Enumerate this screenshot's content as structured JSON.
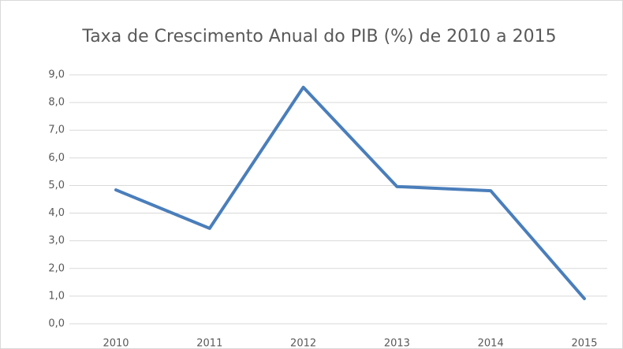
{
  "chart_data": {
    "type": "line",
    "title": "Taxa de Crescimento Anual do PIB (%) de 2010 a 2015",
    "categories": [
      "2010",
      "2011",
      "2012",
      "2013",
      "2014",
      "2015"
    ],
    "series": [
      {
        "name": "PIB",
        "color": "#4a7ebb",
        "values": [
          4.84,
          3.45,
          8.55,
          4.96,
          4.81,
          0.91
        ]
      }
    ],
    "ylim": [
      0,
      9
    ],
    "yticks": [
      {
        "value": 0,
        "label": "0,0"
      },
      {
        "value": 1,
        "label": "1,0"
      },
      {
        "value": 2,
        "label": "2,0"
      },
      {
        "value": 3,
        "label": "3,0"
      },
      {
        "value": 4,
        "label": "4,0"
      },
      {
        "value": 5,
        "label": "5,0"
      },
      {
        "value": 6,
        "label": "6,0"
      },
      {
        "value": 7,
        "label": "7,0"
      },
      {
        "value": 8,
        "label": "8,0"
      },
      {
        "value": 9,
        "label": "9,0"
      }
    ],
    "grid": true
  }
}
